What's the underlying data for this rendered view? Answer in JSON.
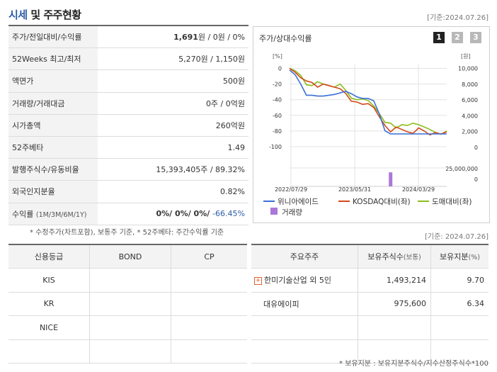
{
  "header": {
    "title_hl": "시세",
    "title_rest": " 및 주주현황",
    "date": "[기준:2024.07.26]"
  },
  "info_rows": [
    {
      "label": "주가/전일대비/수익률",
      "value_bold": "1,691",
      "value": "원 / 0원 / 0%"
    },
    {
      "label": "52Weeks 최고/최저",
      "value": "5,270원 / 1,150원"
    },
    {
      "label": "액면가",
      "value": "500원"
    },
    {
      "label": "거래량/거래대금",
      "value": "0주 / 0억원"
    },
    {
      "label": "시가총액",
      "value": "260억원"
    },
    {
      "label": "52주베타",
      "value": "1.49"
    },
    {
      "label": "발행주식수/유동비율",
      "value": "15,393,405주 / 89.32%"
    },
    {
      "label": "외국인지분율",
      "value": "0.82%"
    }
  ],
  "return_row": {
    "label": "수익률",
    "label_sub": "(1M/3M/6M/1Y)",
    "value": "0%/ 0%/ 0%/ ",
    "value_neg": "-66.45%"
  },
  "note1": "* 수정주가(차트포함), 보통주 기준, * 52주베타: 주간수익률 기준",
  "chart": {
    "title": "주가/상대수익률",
    "pages": [
      "1",
      "2",
      "3"
    ],
    "left_unit": "[%]",
    "right_unit": "[원]",
    "vol_axis_label": "25,000,000",
    "legend": {
      "s1": "위니아에이드",
      "s2": "KOSDAQ대비(좌)",
      "s3": "도매대비(좌)",
      "s4": "거래량"
    },
    "colors": {
      "s1": "#3a6fd8",
      "s2": "#d24a1a",
      "s3": "#8cbd1d",
      "vol": "#a978d8"
    }
  },
  "chart_data": {
    "type": "line",
    "title": "주가/상대수익률",
    "x_labels": [
      "2022/07/29",
      "2023/05/31",
      "2024/03/29"
    ],
    "left_axis": {
      "ticks": [
        "0",
        "-20",
        "-40",
        "-60",
        "-80",
        "-100"
      ],
      "range": [
        -110,
        5
      ]
    },
    "right_axis": {
      "ticks": [
        "10,000",
        "8,000",
        "6,000",
        "4,000",
        "2,000",
        "0"
      ],
      "range": [
        -900,
        10500
      ]
    },
    "series": [
      {
        "name": "위니아에이드",
        "axis": "right",
        "values": [
          9800,
          9200,
          8000,
          6600,
          6600,
          6500,
          6500,
          6600,
          6700,
          6900,
          7100,
          6800,
          6400,
          6200,
          6200,
          5900,
          4200,
          2100,
          1700,
          1700,
          1700,
          1700,
          1700,
          1700,
          1700,
          1700,
          1700,
          1700,
          1700
        ]
      },
      {
        "name": "KOSDAQ대비(좌)",
        "axis": "left",
        "values": [
          0,
          -5,
          -12,
          -16,
          -18,
          -24,
          -20,
          -22,
          -24,
          -26,
          -32,
          -42,
          -43,
          -46,
          -45,
          -50,
          -62,
          -73,
          -81,
          -75,
          -78,
          -81,
          -83,
          -76,
          -80,
          -85,
          -82,
          -84,
          -81
        ]
      },
      {
        "name": "도매대비(좌)",
        "axis": "left",
        "values": [
          0,
          -3,
          -9,
          -21,
          -22,
          -17,
          -20,
          -22,
          -24,
          -20,
          -28,
          -38,
          -40,
          -39,
          -41,
          -48,
          -58,
          -69,
          -70,
          -76,
          -72,
          -73,
          -70,
          -72,
          -75,
          -78,
          -82,
          -84,
          -80
        ]
      }
    ],
    "volume": {
      "axis_max": 25000000,
      "bar_index": 18,
      "bar_value": 19000000
    }
  },
  "credit": {
    "headers": [
      "신용등급",
      "BOND",
      "CP"
    ],
    "rows": [
      [
        "KIS",
        "",
        ""
      ],
      [
        "KR",
        "",
        ""
      ],
      [
        "NICE",
        "",
        ""
      ],
      [
        "",
        "",
        ""
      ]
    ]
  },
  "holders": {
    "date": "[기준: 2024.07.26]",
    "headers": [
      "주요주주",
      "보유주식수",
      "(보통)",
      "보유지분",
      "(%)"
    ],
    "rows": [
      {
        "name": "한미기술산업 외 5인",
        "shares": "1,493,214",
        "pct": "9.70",
        "expand": true
      },
      {
        "name": "대유에이피",
        "shares": "975,600",
        "pct": "6.34",
        "expand": false
      }
    ]
  },
  "note2": "* 보유지분 : 보유지분주식수/지수산정주식수*100"
}
